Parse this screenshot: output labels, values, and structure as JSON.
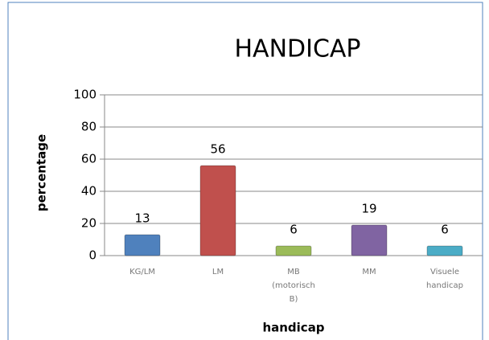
{
  "chart_data": {
    "type": "bar",
    "title": "HANDICAP",
    "x_label": "handicap",
    "y_label": "percentage",
    "categories": [
      "KG/LM",
      "LM",
      "MB (motorisch B)",
      "MM",
      "Visuele handicap"
    ],
    "values": [
      13,
      56,
      6,
      19,
      6
    ],
    "colors": [
      "#4f81bd",
      "#c0504d",
      "#9bbb59",
      "#8064a2",
      "#4bacc6"
    ],
    "ylim": [
      0,
      100
    ],
    "yticks": [
      0,
      20,
      40,
      60,
      80,
      100
    ],
    "grid": true
  }
}
